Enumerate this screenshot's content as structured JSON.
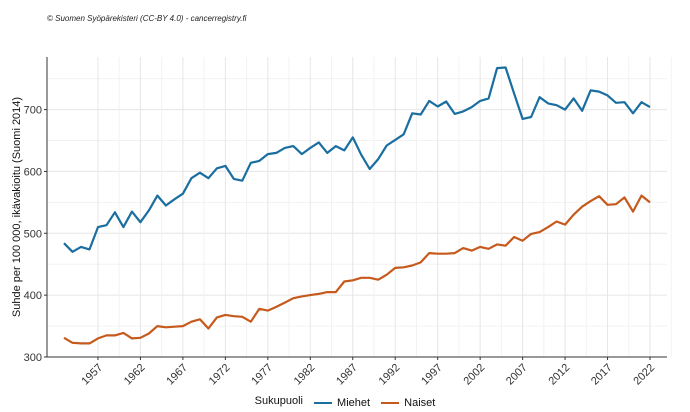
{
  "copyright": "© Suomen Syöpärekisteri (CC-BY 4.0) - cancerregistry.fi",
  "chart_data": {
    "type": "line",
    "ylabel": "Suhde per 100 000, ikävakioitu (Suomi 2014)",
    "xlabel": "",
    "ylim": [
      300,
      785
    ],
    "xlim": [
      1951,
      2024
    ],
    "y_ticks": [
      300,
      400,
      500,
      600,
      700
    ],
    "x_ticks": [
      1957,
      1962,
      1967,
      1972,
      1977,
      1982,
      1987,
      1992,
      1997,
      2002,
      2007,
      2012,
      2017,
      2022
    ],
    "grid": true,
    "legend_title": "Sukupuoli",
    "legend_position": "bottom",
    "x": [
      1953,
      1954,
      1955,
      1956,
      1957,
      1958,
      1959,
      1960,
      1961,
      1962,
      1963,
      1964,
      1965,
      1966,
      1967,
      1968,
      1969,
      1970,
      1971,
      1972,
      1973,
      1974,
      1975,
      1976,
      1977,
      1978,
      1979,
      1980,
      1981,
      1982,
      1983,
      1984,
      1985,
      1986,
      1987,
      1988,
      1989,
      1990,
      1991,
      1992,
      1993,
      1994,
      1995,
      1996,
      1997,
      1998,
      1999,
      2000,
      2001,
      2002,
      2003,
      2004,
      2005,
      2006,
      2007,
      2008,
      2009,
      2010,
      2011,
      2012,
      2013,
      2014,
      2015,
      2016,
      2017,
      2018,
      2019,
      2020,
      2021,
      2022
    ],
    "series": [
      {
        "name": "Miehet",
        "color": "#1a6ea0",
        "values": [
          484,
          470,
          478,
          474,
          510,
          513,
          534,
          510,
          535,
          518,
          537,
          561,
          545,
          555,
          564,
          589,
          598,
          589,
          605,
          609,
          588,
          585,
          614,
          617,
          628,
          630,
          638,
          641,
          628,
          638,
          647,
          630,
          641,
          634,
          655,
          627,
          604,
          620,
          642,
          651,
          660,
          694,
          692,
          714,
          705,
          713,
          693,
          697,
          704,
          714,
          718,
          767,
          768,
          726,
          685,
          688,
          720,
          710,
          707,
          700,
          718,
          698,
          731,
          729,
          723,
          711,
          712,
          694,
          712,
          704
        ]
      },
      {
        "name": "Naiset",
        "color": "#c55a1c",
        "values": [
          331,
          323,
          322,
          322,
          330,
          335,
          335,
          339,
          330,
          331,
          338,
          350,
          348,
          349,
          350,
          357,
          361,
          346,
          364,
          368,
          366,
          365,
          357,
          378,
          375,
          381,
          388,
          395,
          398,
          400,
          402,
          405,
          405,
          422,
          424,
          428,
          428,
          425,
          433,
          444,
          445,
          448,
          453,
          468,
          467,
          467,
          468,
          476,
          472,
          478,
          475,
          482,
          480,
          494,
          488,
          499,
          502,
          510,
          519,
          514,
          530,
          543,
          552,
          560,
          546,
          547,
          558,
          535,
          561,
          550
        ]
      }
    ]
  }
}
